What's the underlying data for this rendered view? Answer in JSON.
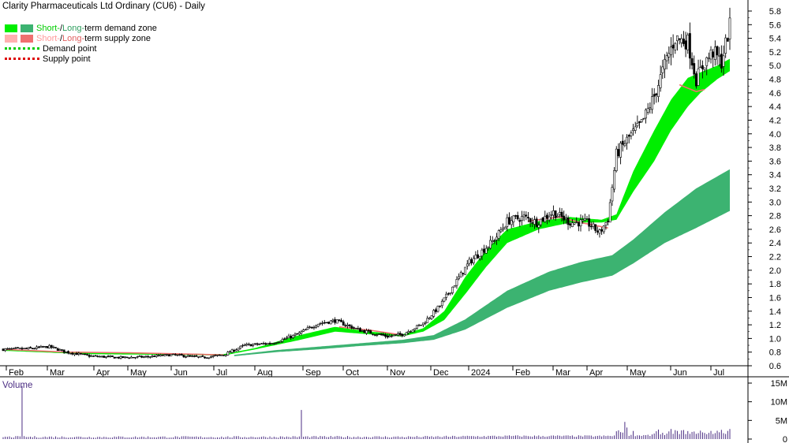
{
  "title": "Clarity Pharmaceuticals Ltd Ordinary (CU6) - Daily",
  "legend": {
    "demand_short": "Short-",
    "demand_mid": " / ",
    "demand_long": "Long-",
    "demand_tail": "term demand zone",
    "supply_short": "Short-",
    "supply_mid": " / ",
    "supply_long": "Long-",
    "supply_tail": "term supply zone",
    "demand_point": "Demand point",
    "supply_point": "Supply point"
  },
  "colors": {
    "short_demand": "#00ee00",
    "long_demand": "#3cb371",
    "short_supply": "#ffb0b0",
    "long_supply": "#f07070",
    "demand_point": "#00cc00",
    "supply_point": "#dd0000",
    "volume": "#4b2d83"
  },
  "volume_label": "Volume",
  "chart_data": {
    "type": "candlestick",
    "price_axis": {
      "min": 0.6,
      "max": 5.8,
      "ticks": [
        "5.8",
        "5.6",
        "5.4",
        "5.2",
        "5.0",
        "4.8",
        "4.6",
        "4.4",
        "4.2",
        "4.0",
        "3.8",
        "3.6",
        "3.4",
        "3.2",
        "3.0",
        "2.8",
        "2.6",
        "2.4",
        "2.2",
        "2.0",
        "1.8",
        "1.6",
        "1.4",
        "1.2",
        "1.0",
        "0.8",
        "0.6"
      ]
    },
    "volume_axis": {
      "min": 0,
      "max": 15,
      "ticks": [
        "15M",
        "10M",
        "5M",
        "0"
      ]
    },
    "x_axis": {
      "labels": [
        "Feb",
        "Mar",
        "Apr",
        "May",
        "Jun",
        "Jul",
        "Aug",
        "Sep",
        "Oct",
        "Nov",
        "Dec",
        "2024",
        "Feb",
        "Mar",
        "Apr",
        "May",
        "Jun",
        "Jul"
      ]
    },
    "price_keypoints": [
      [
        0,
        0.84
      ],
      [
        12,
        0.85
      ],
      [
        22,
        0.88
      ],
      [
        30,
        0.8
      ],
      [
        42,
        0.74
      ],
      [
        55,
        0.72
      ],
      [
        68,
        0.73
      ],
      [
        80,
        0.76
      ],
      [
        95,
        0.72
      ],
      [
        105,
        0.76
      ],
      [
        115,
        0.9
      ],
      [
        128,
        0.93
      ],
      [
        140,
        1.06
      ],
      [
        150,
        1.22
      ],
      [
        158,
        1.26
      ],
      [
        170,
        1.12
      ],
      [
        183,
        1.03
      ],
      [
        190,
        1.06
      ],
      [
        200,
        1.22
      ],
      [
        208,
        1.48
      ],
      [
        215,
        1.8
      ],
      [
        222,
        2.12
      ],
      [
        228,
        2.28
      ],
      [
        234,
        2.45
      ],
      [
        240,
        2.72
      ],
      [
        248,
        2.78
      ],
      [
        254,
        2.7
      ],
      [
        262,
        2.85
      ],
      [
        270,
        2.7
      ],
      [
        278,
        2.7
      ],
      [
        284,
        2.55
      ],
      [
        288,
        2.75
      ],
      [
        292,
        3.7
      ],
      [
        298,
        3.95
      ],
      [
        304,
        4.15
      ],
      [
        310,
        4.55
      ],
      [
        316,
        5.1
      ],
      [
        320,
        5.4
      ],
      [
        326,
        5.35
      ],
      [
        330,
        4.8
      ],
      [
        334,
        5.05
      ],
      [
        338,
        5.2
      ],
      [
        342,
        5.05
      ],
      [
        346,
        5.58
      ]
    ],
    "short_zone": [
      [
        0,
        0.84,
        0.82
      ],
      [
        40,
        0.79,
        0.77
      ],
      [
        80,
        0.78,
        0.76
      ],
      [
        105,
        0.77,
        0.75
      ],
      [
        120,
        0.86,
        0.84
      ],
      [
        140,
        1.04,
        0.97
      ],
      [
        158,
        1.17,
        1.1
      ],
      [
        175,
        1.1,
        1.06
      ],
      [
        190,
        1.06,
        1.03
      ],
      [
        200,
        1.15,
        1.1
      ],
      [
        210,
        1.4,
        1.27
      ],
      [
        220,
        1.9,
        1.65
      ],
      [
        230,
        2.3,
        2.05
      ],
      [
        240,
        2.6,
        2.4
      ],
      [
        255,
        2.72,
        2.6
      ],
      [
        270,
        2.78,
        2.7
      ],
      [
        285,
        2.74,
        2.7
      ],
      [
        292,
        2.82,
        2.74
      ],
      [
        300,
        3.45,
        3.15
      ],
      [
        310,
        4.05,
        3.6
      ],
      [
        318,
        4.5,
        4.05
      ],
      [
        326,
        4.82,
        4.4
      ],
      [
        332,
        4.9,
        4.6
      ],
      [
        340,
        5.0,
        4.8
      ],
      [
        346,
        5.1,
        4.92
      ]
    ],
    "long_zone": [
      [
        110,
        0.76,
        0.74
      ],
      [
        130,
        0.83,
        0.8
      ],
      [
        150,
        0.88,
        0.84
      ],
      [
        170,
        0.93,
        0.89
      ],
      [
        190,
        0.98,
        0.93
      ],
      [
        205,
        1.05,
        0.98
      ],
      [
        220,
        1.28,
        1.13
      ],
      [
        240,
        1.7,
        1.45
      ],
      [
        260,
        1.98,
        1.7
      ],
      [
        275,
        2.12,
        1.82
      ],
      [
        290,
        2.22,
        1.92
      ],
      [
        300,
        2.45,
        2.1
      ],
      [
        315,
        2.85,
        2.4
      ],
      [
        330,
        3.2,
        2.62
      ],
      [
        346,
        3.48,
        2.87
      ]
    ],
    "supply_keypoints": [
      [
        0,
        0.84
      ],
      [
        30,
        0.8
      ],
      [
        60,
        0.79
      ],
      [
        90,
        0.77
      ],
      [
        105,
        0.76
      ],
      [
        160,
        1.17
      ],
      [
        175,
        1.12
      ],
      [
        190,
        1.05
      ],
      [
        250,
        2.72
      ],
      [
        265,
        2.78
      ],
      [
        275,
        2.7
      ],
      [
        288,
        2.62
      ],
      [
        322,
        4.72
      ],
      [
        330,
        4.62
      ],
      [
        334,
        4.65
      ]
    ]
  }
}
